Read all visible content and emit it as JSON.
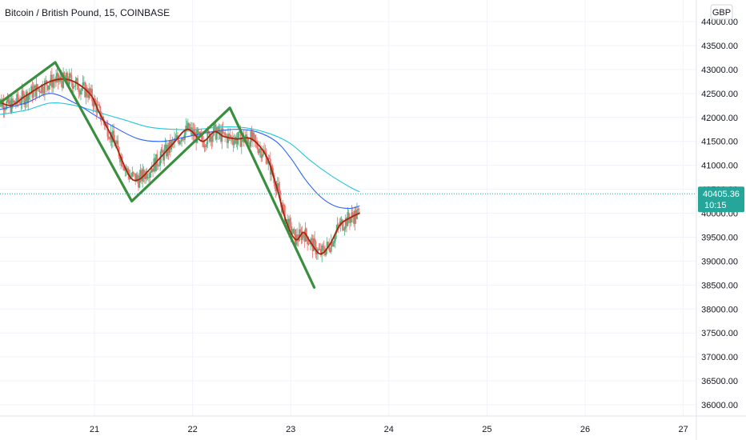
{
  "header": {
    "title": "Bitcoin / British Pound, 15, COINBASE"
  },
  "currency_button": {
    "label": "GBP"
  },
  "price_tag": {
    "price": "40405.36",
    "countdown": "10:15"
  },
  "colors": {
    "pattern": "#3a8f3f",
    "ema_fast": "#a5250d",
    "ma_blue": "#2962ff",
    "ma_cyan": "#26c6da",
    "up_candle": "#4caf7d",
    "down_candle": "#ef6f6c",
    "tag_bg": "#26a69a"
  },
  "chart_data": {
    "type": "line",
    "title": "Bitcoin / British Pound, 15, COINBASE",
    "y_axis": {
      "ylim": [
        35800,
        44300
      ],
      "ticks": [
        "36000.00",
        "36500.00",
        "37000.00",
        "37500.00",
        "38000.00",
        "38500.00",
        "39000.00",
        "39500.00",
        "40000.00",
        "40500.00",
        "41000.00",
        "41500.00",
        "42000.00",
        "42500.00",
        "43000.00",
        "43500.00",
        "44000.00"
      ]
    },
    "x_axis": {
      "ticks": [
        "21",
        "22",
        "23",
        "24",
        "25",
        "26",
        "27"
      ]
    },
    "grid": true,
    "last_price": 40405.36,
    "series": [
      {
        "type": "zigzag",
        "points": [
          [
            20.0,
            42250
          ],
          [
            20.6,
            43150
          ],
          [
            21.38,
            40250
          ],
          [
            22.38,
            42200
          ],
          [
            23.24,
            38450
          ]
        ]
      },
      {
        "type": "ema",
        "points": [
          [
            20.0,
            42350
          ],
          [
            20.15,
            42250
          ],
          [
            20.3,
            42450
          ],
          [
            20.55,
            42750
          ],
          [
            20.75,
            42780
          ],
          [
            20.95,
            42500
          ],
          [
            21.05,
            42100
          ],
          [
            21.2,
            41500
          ],
          [
            21.35,
            40800
          ],
          [
            21.45,
            40700
          ],
          [
            21.6,
            41000
          ],
          [
            21.8,
            41450
          ],
          [
            21.95,
            41750
          ],
          [
            22.1,
            41500
          ],
          [
            22.22,
            41700
          ],
          [
            22.32,
            41600
          ],
          [
            22.45,
            41550
          ],
          [
            22.6,
            41550
          ],
          [
            22.75,
            41200
          ],
          [
            22.85,
            40600
          ],
          [
            22.95,
            39850
          ],
          [
            23.05,
            39450
          ],
          [
            23.13,
            39600
          ],
          [
            23.2,
            39400
          ],
          [
            23.3,
            39150
          ],
          [
            23.4,
            39350
          ],
          [
            23.5,
            39750
          ],
          [
            23.6,
            39900
          ],
          [
            23.7,
            40000
          ]
        ]
      },
      {
        "type": "ma_blue",
        "points": [
          [
            20.0,
            42150
          ],
          [
            20.3,
            42300
          ],
          [
            20.55,
            42500
          ],
          [
            20.8,
            42300
          ],
          [
            21.0,
            42050
          ],
          [
            21.2,
            41800
          ],
          [
            21.45,
            41550
          ],
          [
            21.7,
            41500
          ],
          [
            21.95,
            41600
          ],
          [
            22.2,
            41700
          ],
          [
            22.45,
            41750
          ],
          [
            22.65,
            41700
          ],
          [
            22.85,
            41500
          ],
          [
            23.0,
            41150
          ],
          [
            23.15,
            40700
          ],
          [
            23.3,
            40350
          ],
          [
            23.45,
            40150
          ],
          [
            23.6,
            40100
          ],
          [
            23.7,
            40150
          ]
        ]
      },
      {
        "type": "ma_cyan",
        "points": [
          [
            20.0,
            42050
          ],
          [
            20.3,
            42150
          ],
          [
            20.55,
            42300
          ],
          [
            20.8,
            42250
          ],
          [
            21.05,
            42100
          ],
          [
            21.3,
            41950
          ],
          [
            21.55,
            41800
          ],
          [
            21.8,
            41750
          ],
          [
            22.05,
            41750
          ],
          [
            22.3,
            41800
          ],
          [
            22.55,
            41780
          ],
          [
            22.8,
            41650
          ],
          [
            23.0,
            41450
          ],
          [
            23.2,
            41100
          ],
          [
            23.4,
            40800
          ],
          [
            23.6,
            40550
          ],
          [
            23.7,
            40450
          ]
        ]
      }
    ]
  }
}
